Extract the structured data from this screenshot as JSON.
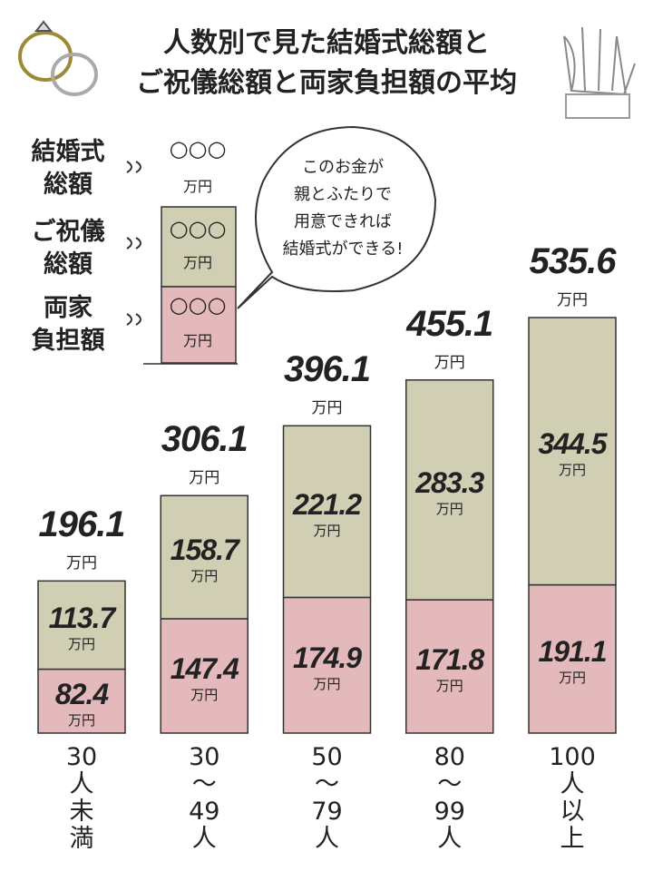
{
  "chart_data": {
    "type": "stacked_bar",
    "title": [
      "人数別で見た結婚式総額と",
      "ご祝儀総額と両家負担額の平均"
    ],
    "categories": [
      "30\n人\n未\n満",
      "30\n〜\n49\n人",
      "50\n〜\n79\n人",
      "80\n〜\n99\n人",
      "100\n人\n以\n上"
    ],
    "series": [
      {
        "name": "両家\n負担額",
        "color": "#e4b9bc",
        "values": [
          82.4,
          147.4,
          174.9,
          171.8,
          191.1
        ]
      },
      {
        "name": "ご祝儀\n総額",
        "color": "#d0cfb4",
        "values": [
          113.7,
          158.7,
          221.2,
          283.3,
          344.5
        ]
      }
    ],
    "totals": [
      196.1,
      306.1,
      396.1,
      455.1,
      535.6
    ],
    "total_label": "結婚式\n総額",
    "unit": "万円",
    "placeholder": "○○○",
    "bubble": "このお金が\n親とふたりで\n用意できれば\n結婚式ができる!"
  }
}
